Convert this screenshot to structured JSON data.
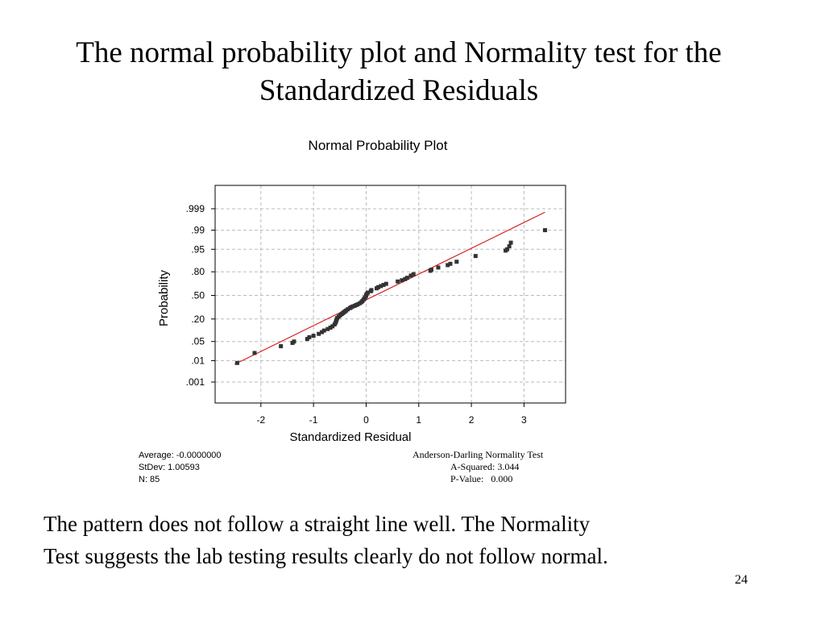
{
  "slide": {
    "title_line1": "The normal probability plot and Normality test for the",
    "title_line2": "Standardized Residuals",
    "conclusion_line1": "The pattern does not follow a straight line well. The Normality",
    "conclusion_line2": "Test suggests the lab testing results clearly do not follow normal.",
    "page_number": "24"
  },
  "stats": {
    "average": "Average: -0.0000000",
    "stdev": "StDev: 1.00593",
    "n": "N: 85"
  },
  "normality_test": {
    "name": "Anderson-Darling Normality Test",
    "a_squared": "A-Squared: 3.044",
    "p_value": "P-Value:   0.000"
  },
  "colors": {
    "fit_line": "#d42020",
    "points": "#333333",
    "grid": "#bbbbbb",
    "frame": "#000000"
  },
  "chart_data": {
    "type": "scatter",
    "title": "Normal Probability Plot",
    "xlabel": "Standardized Residual",
    "ylabel": "Probability",
    "x_ticks": [
      -2,
      -1,
      0,
      1,
      2,
      3
    ],
    "x_tick_labels": [
      "-2",
      "-1",
      "0",
      "1",
      "2",
      "3"
    ],
    "xlim": [
      -2.87,
      3.79
    ],
    "y_scale": "normal-probability",
    "y_ticks": [
      0.001,
      0.01,
      0.05,
      0.2,
      0.5,
      0.8,
      0.95,
      0.99,
      0.999
    ],
    "y_tick_labels": [
      ".001",
      ".01",
      ".05",
      ".20",
      ".50",
      ".80",
      ".95",
      ".99",
      ".999"
    ],
    "grid": true,
    "fit_line": {
      "x": [
        -2.5,
        3.4
      ],
      "p": [
        0.007,
        0.9985
      ]
    },
    "points": [
      [
        -2.45,
        0.008
      ],
      [
        -2.12,
        0.02
      ],
      [
        -1.62,
        0.035
      ],
      [
        -1.4,
        0.045
      ],
      [
        -1.37,
        0.05
      ],
      [
        -1.12,
        0.06
      ],
      [
        -1.08,
        0.068
      ],
      [
        -1.0,
        0.075
      ],
      [
        -0.9,
        0.085
      ],
      [
        -0.84,
        0.095
      ],
      [
        -0.8,
        0.105
      ],
      [
        -0.73,
        0.115
      ],
      [
        -0.68,
        0.125
      ],
      [
        -0.64,
        0.135
      ],
      [
        -0.6,
        0.15
      ],
      [
        -0.58,
        0.165
      ],
      [
        -0.57,
        0.18
      ],
      [
        -0.56,
        0.195
      ],
      [
        -0.55,
        0.21
      ],
      [
        -0.52,
        0.225
      ],
      [
        -0.49,
        0.24
      ],
      [
        -0.46,
        0.255
      ],
      [
        -0.44,
        0.265
      ],
      [
        -0.42,
        0.275
      ],
      [
        -0.4,
        0.285
      ],
      [
        -0.38,
        0.295
      ],
      [
        -0.35,
        0.31
      ],
      [
        -0.31,
        0.325
      ],
      [
        -0.29,
        0.335
      ],
      [
        -0.26,
        0.345
      ],
      [
        -0.22,
        0.355
      ],
      [
        -0.19,
        0.365
      ],
      [
        -0.16,
        0.375
      ],
      [
        -0.12,
        0.39
      ],
      [
        -0.09,
        0.405
      ],
      [
        -0.07,
        0.42
      ],
      [
        -0.05,
        0.44
      ],
      [
        -0.03,
        0.46
      ],
      [
        -0.01,
        0.48
      ],
      [
        0.0,
        0.5
      ],
      [
        0.01,
        0.52
      ],
      [
        0.03,
        0.54
      ],
      [
        0.09,
        0.56
      ],
      [
        0.1,
        0.575
      ],
      [
        0.2,
        0.6
      ],
      [
        0.23,
        0.615
      ],
      [
        0.28,
        0.63
      ],
      [
        0.33,
        0.645
      ],
      [
        0.38,
        0.66
      ],
      [
        0.6,
        0.69
      ],
      [
        0.68,
        0.705
      ],
      [
        0.74,
        0.72
      ],
      [
        0.78,
        0.735
      ],
      [
        0.85,
        0.76
      ],
      [
        0.9,
        0.775
      ],
      [
        1.22,
        0.81
      ],
      [
        1.24,
        0.82
      ],
      [
        1.37,
        0.84
      ],
      [
        1.55,
        0.86
      ],
      [
        1.6,
        0.87
      ],
      [
        1.72,
        0.885
      ],
      [
        2.08,
        0.92
      ],
      [
        2.65,
        0.945
      ],
      [
        2.68,
        0.95
      ],
      [
        2.72,
        0.96
      ],
      [
        2.75,
        0.97
      ],
      [
        3.4,
        0.99
      ]
    ]
  }
}
